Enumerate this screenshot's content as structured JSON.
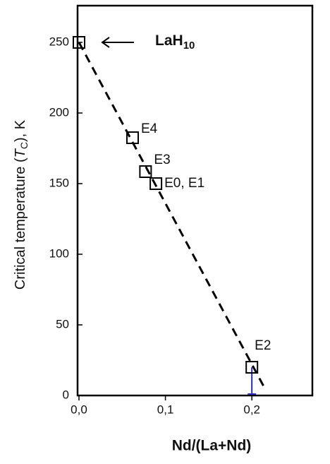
{
  "chart_data": {
    "type": "scatter",
    "ylabel_parts": [
      "Critical temperature (",
      "T",
      "C",
      "), K"
    ],
    "xlabel": "Nd/(La+Nd)",
    "annotation": {
      "text": "LaH",
      "subscript": "10"
    },
    "x": [
      0,
      0.062,
      0.077,
      0.089,
      0.2
    ],
    "values": [
      250,
      182.5,
      158.5,
      150,
      20
    ],
    "error_low": [
      null,
      null,
      null,
      null,
      19
    ],
    "point_labels": [
      null,
      "E4",
      "E3",
      "E0, E1",
      "E2"
    ],
    "color": "#000000",
    "error_color": "#2a2ab0",
    "trend": {
      "x": [
        0,
        0.215
      ],
      "y": [
        250,
        5
      ]
    },
    "xlim": [
      0,
      0.27
    ],
    "ylim": [
      0,
      276
    ],
    "xticks": [
      {
        "value": 0,
        "label": "0,0"
      },
      {
        "value": 0.1,
        "label": "0,1"
      },
      {
        "value": 0.2,
        "label": "0,2"
      }
    ],
    "yticks": [
      0,
      50,
      100,
      150,
      200,
      250
    ]
  }
}
